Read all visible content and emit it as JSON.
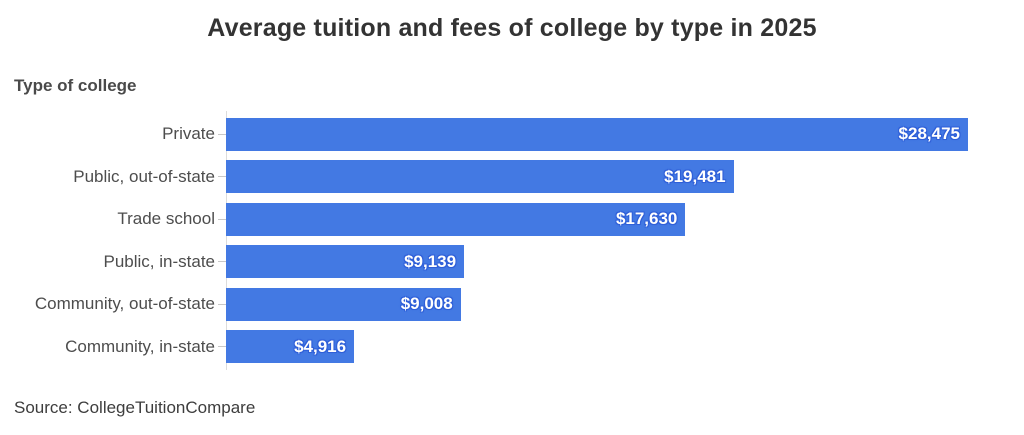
{
  "title": "Average tuition and fees of college by type in 2025",
  "axis_title": "Type of college",
  "source": "Source: CollegeTuitionCompare",
  "colors": {
    "bar": "#4379e3",
    "bar_label_text": "#ffffff",
    "bar_label_halo": "#2f5fd8",
    "axis_line": "#dcdcdc",
    "tick": "#c8c8c8",
    "title_text": "#333333",
    "category_text": "#4d4d4d"
  },
  "chart_data": {
    "type": "bar",
    "orientation": "horizontal",
    "title": "Average tuition and fees of college by type in 2025",
    "ylabel": "Type of college",
    "xlabel": "",
    "categories": [
      "Private",
      "Public, out-of-state",
      "Trade school",
      "Public, in-state",
      "Community, out-of-state",
      "Community, in-state"
    ],
    "values": [
      28475,
      19481,
      17630,
      9139,
      9008,
      4916
    ],
    "value_labels": [
      "$28,475",
      "$19,481",
      "$17,630",
      "$9,139",
      "$9,008",
      "$4,916"
    ],
    "xlim": [
      0,
      28475
    ],
    "grid": false,
    "legend": false,
    "value_label_position": "inside-end"
  }
}
